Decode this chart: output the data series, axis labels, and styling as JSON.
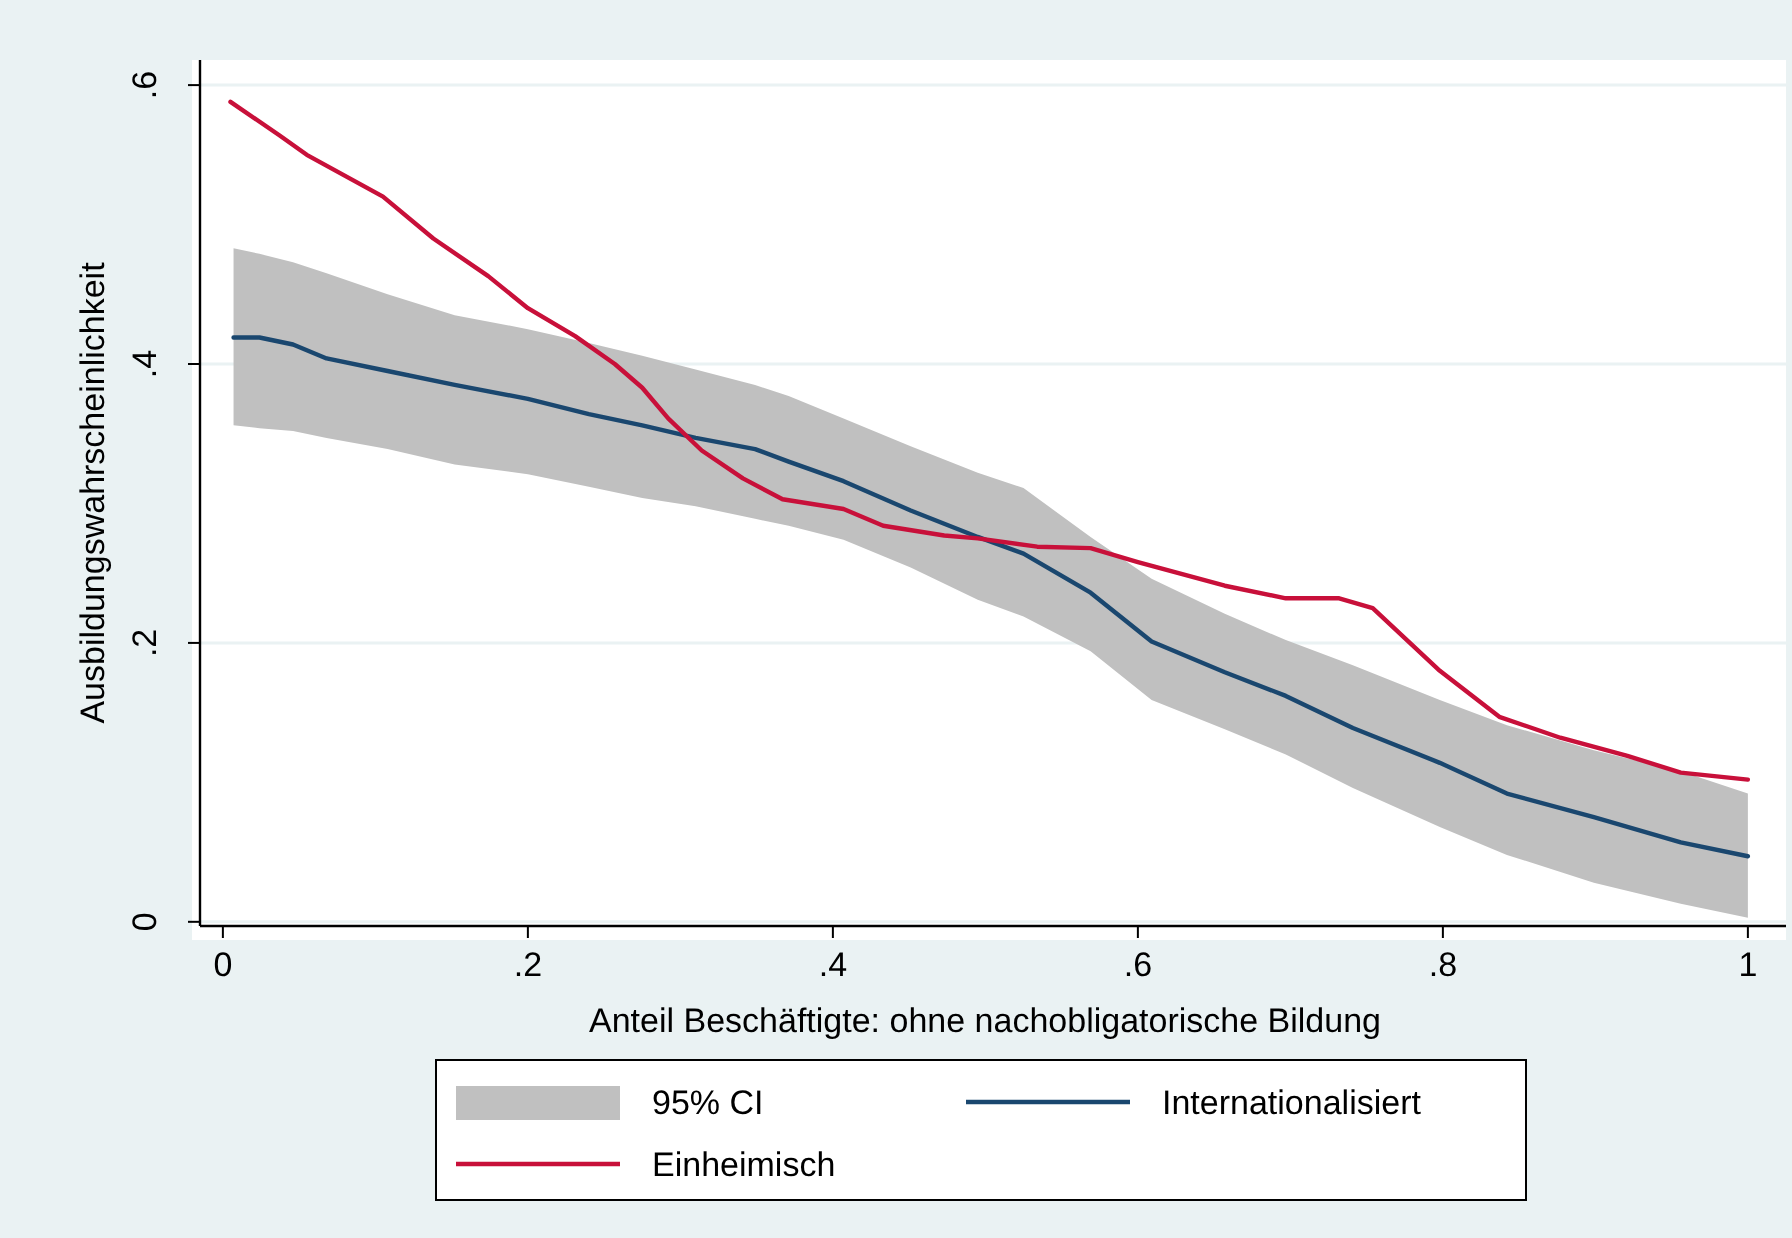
{
  "chart_data": {
    "type": "line",
    "xlabel": "Anteil Beschäftigte: ohne nachobligatorische Bildung",
    "ylabel": "Ausbildungswahrscheinlichkeit",
    "xlim": [
      -0.015,
      1.025
    ],
    "ylim": [
      -0.003,
      0.618
    ],
    "xticks": [
      {
        "value": 0,
        "label": "0"
      },
      {
        "value": 0.2,
        "label": ".2"
      },
      {
        "value": 0.4,
        "label": ".4"
      },
      {
        "value": 0.6,
        "label": ".6"
      },
      {
        "value": 0.8,
        "label": ".8"
      },
      {
        "value": 1,
        "label": "1"
      }
    ],
    "yticks": [
      {
        "value": 0,
        "label": "0"
      },
      {
        "value": 0.2,
        "label": ".2"
      },
      {
        "value": 0.4,
        "label": ".4"
      },
      {
        "value": 0.6,
        "label": ".6"
      }
    ],
    "grid": "y",
    "legend": "bottom",
    "series": [
      {
        "name": "95% CI",
        "type": "area",
        "color": "#c0c0c0"
      },
      {
        "name": "Internationalisiert",
        "color": "#1a476f",
        "x": [
          0.007,
          0.024,
          0.046,
          0.068,
          0.108,
          0.152,
          0.2,
          0.24,
          0.275,
          0.31,
          0.349,
          0.371,
          0.407,
          0.451,
          0.495,
          0.525,
          0.569,
          0.609,
          0.657,
          0.697,
          0.741,
          0.798,
          0.842,
          0.899,
          0.956,
          1.0
        ],
        "values": [
          0.419,
          0.419,
          0.414,
          0.404,
          0.395,
          0.385,
          0.375,
          0.364,
          0.356,
          0.347,
          0.339,
          0.33,
          0.316,
          0.295,
          0.276,
          0.264,
          0.236,
          0.201,
          0.179,
          0.162,
          0.139,
          0.114,
          0.092,
          0.075,
          0.057,
          0.047
        ],
        "upper": [
          0.483,
          0.479,
          0.473,
          0.465,
          0.45,
          0.435,
          0.425,
          0.415,
          0.406,
          0.396,
          0.385,
          0.377,
          0.361,
          0.341,
          0.322,
          0.311,
          0.276,
          0.246,
          0.221,
          0.202,
          0.184,
          0.159,
          0.141,
          0.123,
          0.108,
          0.092
        ],
        "lower": [
          0.356,
          0.354,
          0.352,
          0.347,
          0.339,
          0.328,
          0.321,
          0.312,
          0.304,
          0.298,
          0.289,
          0.284,
          0.274,
          0.254,
          0.231,
          0.219,
          0.194,
          0.159,
          0.138,
          0.12,
          0.096,
          0.068,
          0.048,
          0.028,
          0.013,
          0.003
        ]
      },
      {
        "name": "Einheimisch",
        "color": "#c8103a",
        "x": [
          0.005,
          0.037,
          0.055,
          0.105,
          0.138,
          0.174,
          0.2,
          0.231,
          0.257,
          0.275,
          0.292,
          0.314,
          0.341,
          0.367,
          0.407,
          0.433,
          0.473,
          0.495,
          0.534,
          0.569,
          0.6,
          0.657,
          0.697,
          0.732,
          0.754,
          0.798,
          0.837,
          0.877,
          0.921,
          0.956,
          1.0
        ],
        "values": [
          0.588,
          0.564,
          0.55,
          0.52,
          0.49,
          0.463,
          0.44,
          0.42,
          0.4,
          0.383,
          0.361,
          0.338,
          0.318,
          0.303,
          0.296,
          0.284,
          0.277,
          0.275,
          0.269,
          0.268,
          0.258,
          0.241,
          0.232,
          0.232,
          0.225,
          0.18,
          0.147,
          0.132,
          0.119,
          0.107,
          0.102
        ]
      }
    ]
  }
}
